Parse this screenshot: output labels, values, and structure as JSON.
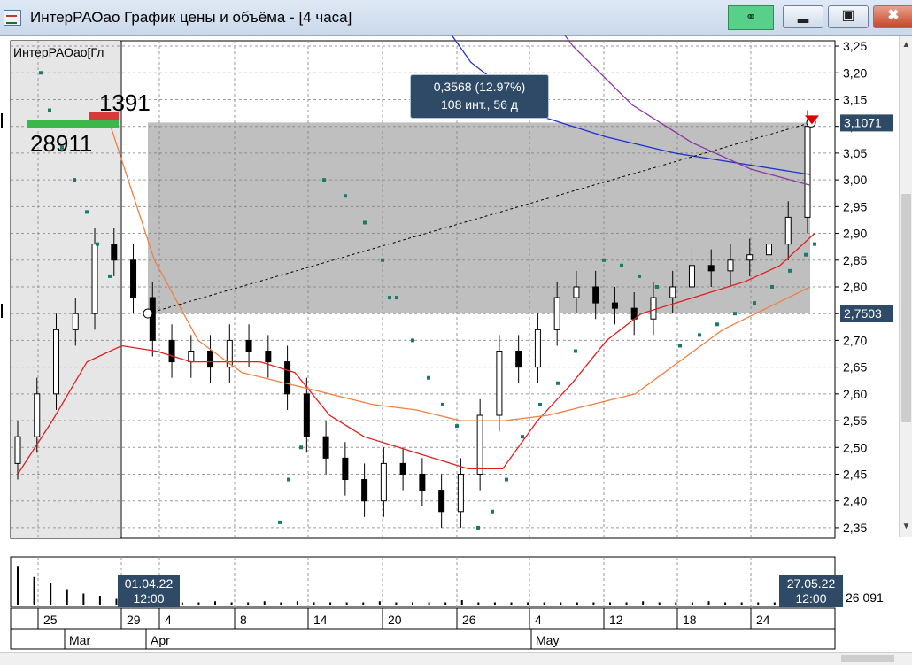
{
  "window": {
    "title": "ИнтерРАОао График цены и объёма - [4 часа]",
    "link_icon": "link-icon",
    "minimize_icon": "minimize-icon",
    "maximize_icon": "maximize-icon",
    "close_icon": "close-icon"
  },
  "chart": {
    "legend_label": "ИнтерРАОао[Гл",
    "order_book_ask": "1391",
    "order_book_bid": "28911",
    "tooltip_line1": "0,3568 (12.97%)",
    "tooltip_line2": "108 инт., 56 д",
    "price_marker_high": "3,1071",
    "price_marker_low": "2,7503",
    "volume_value": "26 091",
    "cursor_start_date": "01.04.22",
    "cursor_start_time": "12:00",
    "cursor_end_date": "27.05.22",
    "cursor_end_time": "12:00"
  },
  "chart_data": {
    "type": "candlestick",
    "title": "ИнтерРАОао График цены и объёма - [4 часа]",
    "y_ticks": [
      "3,25",
      "3,20",
      "3,15",
      "3,10",
      "3,05",
      "3,00",
      "2,95",
      "2,90",
      "2,85",
      "2,80",
      "2,75",
      "2,70",
      "2,65",
      "2,60",
      "2,55",
      "2,50",
      "2,45",
      "2,40",
      "2,35"
    ],
    "ylim": [
      2.33,
      3.26
    ],
    "x_day_ticks": [
      "25",
      "29",
      "4",
      "8",
      "14",
      "20",
      "26",
      "4",
      "12",
      "18",
      "24"
    ],
    "x_month_ticks": [
      "Mar",
      "Apr",
      "May"
    ],
    "highlight_range": {
      "y_low": 2.7503,
      "y_high": 3.1071,
      "change": "0,3568 (12.97%)",
      "intervals": "108 инт., 56 д"
    },
    "grid": true,
    "series": [
      {
        "name": "candles_close_approx",
        "values": [
          2.52,
          2.6,
          2.72,
          2.75,
          2.88,
          2.85,
          2.78,
          2.7,
          2.66,
          2.68,
          2.65,
          2.7,
          2.68,
          2.66,
          2.6,
          2.52,
          2.48,
          2.44,
          2.4,
          2.47,
          2.45,
          2.42,
          2.38,
          2.45,
          2.56,
          2.68,
          2.65,
          2.72,
          2.78,
          2.8,
          2.77,
          2.76,
          2.74,
          2.78,
          2.8,
          2.84,
          2.83,
          2.85,
          2.86,
          2.88,
          2.93,
          3.1
        ]
      },
      {
        "name": "ma_fast",
        "values": [
          2.45,
          2.55,
          2.66,
          2.69,
          2.68,
          2.66,
          2.66,
          2.66,
          2.64,
          2.56,
          2.52,
          2.5,
          2.48,
          2.46,
          2.46,
          2.55,
          2.62,
          2.7,
          2.75,
          2.77,
          2.79,
          2.81,
          2.84,
          2.9
        ]
      },
      {
        "name": "ma_slow",
        "values": [
          3.1,
          2.85,
          2.7,
          2.64,
          2.62,
          2.6,
          2.58,
          2.57,
          2.55,
          2.55,
          2.56,
          2.58,
          2.6,
          2.66,
          2.72,
          2.76,
          2.8
        ]
      }
    ]
  },
  "volume_data": {
    "values": [
      35,
      25,
      20,
      14,
      10,
      8,
      6,
      4,
      3,
      3,
      2,
      2,
      3,
      2,
      2,
      3,
      2,
      3,
      2,
      2,
      2,
      2,
      3,
      2,
      2,
      2,
      2,
      4,
      2,
      2,
      2,
      2,
      2,
      2,
      2,
      2,
      2,
      2,
      3,
      2,
      2,
      2,
      3,
      2,
      2,
      2,
      2,
      3,
      6
    ]
  }
}
